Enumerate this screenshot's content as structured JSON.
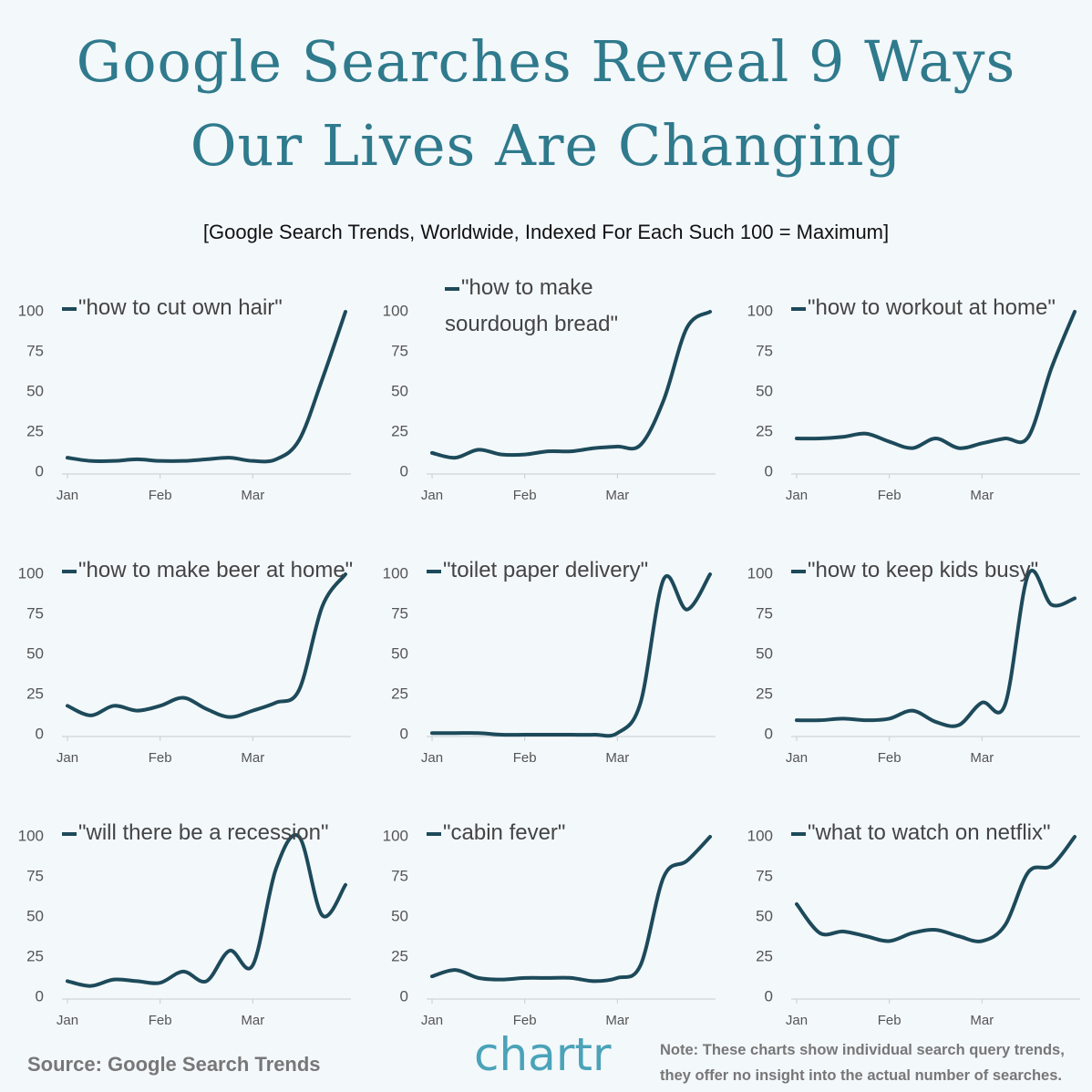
{
  "title": "Google Searches Reveal 9 Ways Our Lives Are Changing",
  "subtitle": "[Google Search Trends, Worldwide, Indexed For Each Such 100 = Maximum]",
  "source": "Source: Google Search Trends",
  "logo": "chartr",
  "note": "Note: These charts show individual search query trends, they offer no insight into the actual number of searches.",
  "chart_data": [
    {
      "type": "line",
      "categories": [
        "Jan",
        null,
        null,
        null,
        "Feb",
        null,
        null,
        null,
        "Mar",
        null,
        null,
        null,
        null
      ],
      "ylim": [
        0,
        100
      ],
      "yticks": [
        0,
        25,
        50,
        75,
        100
      ],
      "series": [
        {
          "name": "\"how to cut own hair\"",
          "color": "#1d4a5a",
          "values": [
            9,
            7,
            7,
            8,
            7,
            7,
            8,
            9,
            7,
            8,
            20,
            58,
            100
          ]
        }
      ]
    },
    {
      "type": "line",
      "categories": [
        "Jan",
        null,
        null,
        null,
        "Feb",
        null,
        null,
        null,
        "Mar",
        null,
        null,
        null,
        null
      ],
      "ylim": [
        0,
        100
      ],
      "yticks": [
        0,
        25,
        50,
        75,
        100
      ],
      "series": [
        {
          "name": "\"how to make sourdough bread\"",
          "color": "#1d4a5a",
          "values": [
            12,
            9,
            14,
            11,
            11,
            13,
            13,
            15,
            16,
            17,
            45,
            90,
            100
          ]
        }
      ]
    },
    {
      "type": "line",
      "categories": [
        "Jan",
        null,
        null,
        null,
        "Feb",
        null,
        null,
        null,
        "Mar",
        null,
        null,
        null,
        null
      ],
      "ylim": [
        0,
        100
      ],
      "yticks": [
        0,
        25,
        50,
        75,
        100
      ],
      "series": [
        {
          "name": "\"how to workout at home\"",
          "color": "#1d4a5a",
          "values": [
            21,
            21,
            22,
            24,
            19,
            15,
            21,
            15,
            18,
            21,
            22,
            65,
            100
          ]
        }
      ]
    },
    {
      "type": "line",
      "categories": [
        "Jan",
        null,
        null,
        null,
        "Feb",
        null,
        null,
        null,
        "Mar",
        null,
        null,
        null,
        null
      ],
      "ylim": [
        0,
        100
      ],
      "yticks": [
        0,
        25,
        50,
        75,
        100
      ],
      "series": [
        {
          "name": "\"how to make beer at home\"",
          "color": "#1d4a5a",
          "values": [
            18,
            12,
            18,
            15,
            18,
            23,
            16,
            11,
            15,
            20,
            28,
            80,
            100
          ]
        }
      ]
    },
    {
      "type": "line",
      "categories": [
        "Jan",
        null,
        null,
        null,
        "Feb",
        null,
        null,
        null,
        "Mar",
        null,
        null,
        null,
        null
      ],
      "ylim": [
        0,
        100
      ],
      "yticks": [
        0,
        25,
        50,
        75,
        100
      ],
      "series": [
        {
          "name": "\"toilet paper delivery\"",
          "color": "#1d4a5a",
          "values": [
            1,
            1,
            1,
            0,
            0,
            0,
            0,
            0,
            1,
            20,
            97,
            78,
            100
          ]
        }
      ]
    },
    {
      "type": "line",
      "categories": [
        "Jan",
        null,
        null,
        null,
        "Feb",
        null,
        null,
        null,
        "Mar",
        null,
        null,
        null,
        null
      ],
      "ylim": [
        0,
        100
      ],
      "yticks": [
        0,
        25,
        50,
        75,
        100
      ],
      "series": [
        {
          "name": "\"how to keep kids busy\"",
          "color": "#1d4a5a",
          "values": [
            9,
            9,
            10,
            9,
            10,
            15,
            8,
            6,
            20,
            19,
            100,
            81,
            85
          ]
        }
      ]
    },
    {
      "type": "line",
      "categories": [
        "Jan",
        null,
        null,
        null,
        "Feb",
        null,
        null,
        null,
        "Mar",
        null,
        null,
        null,
        null
      ],
      "ylim": [
        0,
        100
      ],
      "yticks": [
        0,
        25,
        50,
        75,
        100
      ],
      "series": [
        {
          "name": "\"will there be a recession\"",
          "color": "#1d4a5a",
          "values": [
            10,
            7,
            11,
            10,
            9,
            16,
            10,
            29,
            20,
            80,
            100,
            51,
            70
          ]
        }
      ]
    },
    {
      "type": "line",
      "categories": [
        "Jan",
        null,
        null,
        null,
        "Feb",
        null,
        null,
        null,
        "Mar",
        null,
        null,
        null,
        null
      ],
      "ylim": [
        0,
        100
      ],
      "yticks": [
        0,
        25,
        50,
        75,
        100
      ],
      "series": [
        {
          "name": "\"cabin fever\"",
          "color": "#1d4a5a",
          "values": [
            13,
            17,
            12,
            11,
            12,
            12,
            12,
            10,
            12,
            20,
            75,
            85,
            100
          ]
        }
      ]
    },
    {
      "type": "line",
      "categories": [
        "Jan",
        null,
        null,
        null,
        "Feb",
        null,
        null,
        null,
        "Mar",
        null,
        null,
        null,
        null
      ],
      "ylim": [
        0,
        100
      ],
      "yticks": [
        0,
        25,
        50,
        75,
        100
      ],
      "series": [
        {
          "name": "\"what to watch on netflix\"",
          "color": "#1d4a5a",
          "values": [
            58,
            40,
            41,
            38,
            35,
            40,
            42,
            38,
            35,
            45,
            78,
            82,
            100
          ]
        }
      ]
    }
  ]
}
